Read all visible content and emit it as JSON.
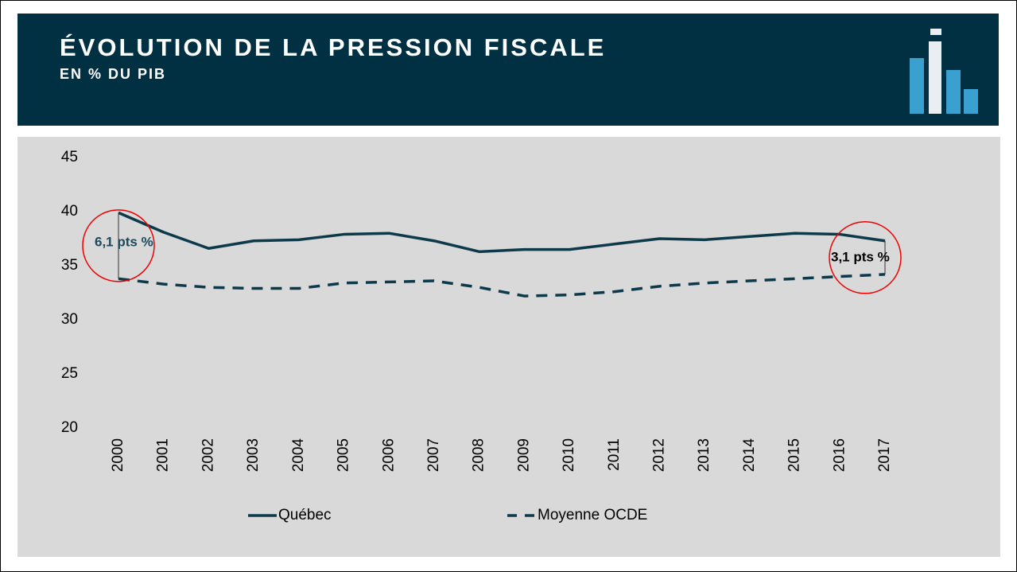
{
  "title": "ÉVOLUTION DE LA PRESSION FISCALE",
  "subtitle": "EN % DU PIB",
  "chart_data": {
    "type": "line",
    "categories": [
      "2000",
      "2001",
      "2002",
      "2003",
      "2004",
      "2005",
      "2006",
      "2007",
      "2008",
      "2009",
      "2010",
      "2011",
      "2012",
      "2013",
      "2014",
      "2015",
      "2016",
      "2017"
    ],
    "series": [
      {
        "name": "Québec",
        "color": "#0d3a4a",
        "dash": false,
        "values": [
          39.9,
          38.1,
          36.6,
          37.3,
          37.4,
          37.9,
          38.0,
          37.3,
          36.3,
          36.5,
          36.5,
          37.0,
          37.5,
          37.4,
          37.7,
          38.0,
          37.9,
          37.3
        ]
      },
      {
        "name": "Moyenne OCDE",
        "color": "#0d3a4a",
        "dash": true,
        "values": [
          33.8,
          33.3,
          33.0,
          32.9,
          32.9,
          33.4,
          33.5,
          33.6,
          33.0,
          32.2,
          32.3,
          32.6,
          33.1,
          33.4,
          33.6,
          33.8,
          34.0,
          34.2
        ]
      }
    ],
    "ylim": [
      20,
      45
    ],
    "yticks": [
      20,
      25,
      30,
      35,
      40,
      45
    ],
    "grid": false,
    "annotations": [
      {
        "text": "6,1 pts %"
      },
      {
        "text": "3,1 pts %"
      }
    ]
  }
}
